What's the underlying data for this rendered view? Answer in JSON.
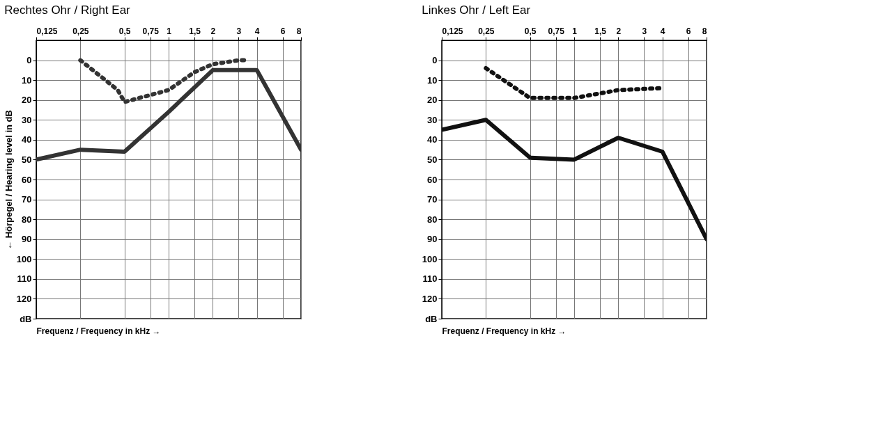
{
  "chart_data": [
    {
      "type": "line",
      "title": "Rechtes Ohr / Right Ear",
      "xlabel": "Frequenz / Frequency in kHz →",
      "ylabel": "← Hörpegel / Hearing level in dB",
      "log": "x",
      "grid": true,
      "xlim": [
        0.125,
        8
      ],
      "xticks": [
        {
          "value": 0.125,
          "label": "0,125"
        },
        {
          "value": 0.25,
          "label": "0,25"
        },
        {
          "value": 0.5,
          "label": "0,5"
        },
        {
          "value": 0.75,
          "label": "0,75"
        },
        1,
        {
          "value": 1.5,
          "label": "1,5"
        },
        2,
        3,
        4,
        6,
        8
      ],
      "ylim": [
        130,
        -10
      ],
      "yticks": [
        0,
        10,
        20,
        30,
        40,
        50,
        60,
        70,
        80,
        90,
        100,
        110,
        120,
        {
          "value": 130,
          "label": "dB"
        }
      ],
      "series": [
        {
          "line_style": "solid",
          "color": "#333333",
          "x": [
            0.125,
            0.25,
            0.5,
            1,
            2,
            3,
            4,
            8
          ],
          "values": [
            50,
            45,
            46,
            26,
            5,
            5,
            5,
            45
          ]
        },
        {
          "line_style": "dotted",
          "color": "#333333",
          "x": [
            0.25,
            0.45,
            0.5,
            1,
            1.5,
            2,
            3,
            3.5
          ],
          "values": [
            0,
            15,
            21,
            15,
            6,
            2,
            0,
            0
          ]
        }
      ]
    },
    {
      "type": "line",
      "title": "Linkes Ohr / Left Ear",
      "xlabel": "Frequenz / Frequency in kHz →",
      "log": "x",
      "grid": true,
      "xlim": [
        0.125,
        8
      ],
      "xticks": [
        {
          "value": 0.125,
          "label": "0,125"
        },
        {
          "value": 0.25,
          "label": "0,25"
        },
        {
          "value": 0.5,
          "label": "0,5"
        },
        {
          "value": 0.75,
          "label": "0,75"
        },
        1,
        {
          "value": 1.5,
          "label": "1,5"
        },
        2,
        3,
        4,
        6,
        8
      ],
      "ylim": [
        130,
        -10
      ],
      "yticks": [
        0,
        10,
        20,
        30,
        40,
        50,
        60,
        70,
        80,
        90,
        100,
        110,
        120,
        {
          "value": 130,
          "label": "dB"
        }
      ],
      "series": [
        {
          "line_style": "solid",
          "color": "#111111",
          "x": [
            0.125,
            0.25,
            0.5,
            1,
            2,
            4,
            8
          ],
          "values": [
            35,
            30,
            49,
            50,
            39,
            46,
            90
          ]
        },
        {
          "line_style": "dotted",
          "color": "#111111",
          "x": [
            0.25,
            0.5,
            1,
            2,
            4
          ],
          "values": [
            4,
            19,
            19,
            15,
            14
          ]
        }
      ]
    }
  ]
}
